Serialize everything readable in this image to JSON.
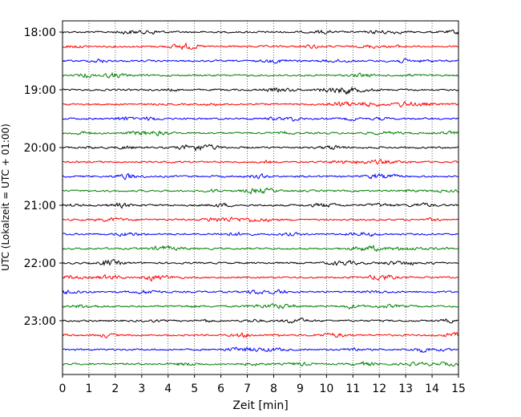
{
  "chart_data": {
    "type": "line",
    "xlabel": "Zeit  [min]",
    "ylabel": "UTC (Lokalzeit = UTC + 01:00)",
    "xlim": [
      0,
      15
    ],
    "x_ticks": [
      0,
      1,
      2,
      3,
      4,
      5,
      6,
      7,
      8,
      9,
      10,
      11,
      12,
      13,
      14,
      15
    ],
    "y_tick_labels": [
      "18:00",
      "19:00",
      "20:00",
      "21:00",
      "22:00",
      "23:00"
    ],
    "y_tick_rows": [
      0,
      4,
      8,
      12,
      16,
      20
    ],
    "vertical_grid": true,
    "rows": [
      "18:00",
      "18:15",
      "18:30",
      "18:45",
      "19:00",
      "19:15",
      "19:30",
      "19:45",
      "20:00",
      "20:15",
      "20:30",
      "20:45",
      "21:00",
      "21:15",
      "21:30",
      "21:45",
      "22:00",
      "22:15",
      "22:30",
      "22:45",
      "23:00",
      "23:15",
      "23:30",
      "23:45"
    ],
    "row_colors": [
      "#000000",
      "#ff0000",
      "#0000ff",
      "#008000"
    ],
    "trace": "noise-like seismogram trace, small amplitude, one per 15-minute row"
  }
}
